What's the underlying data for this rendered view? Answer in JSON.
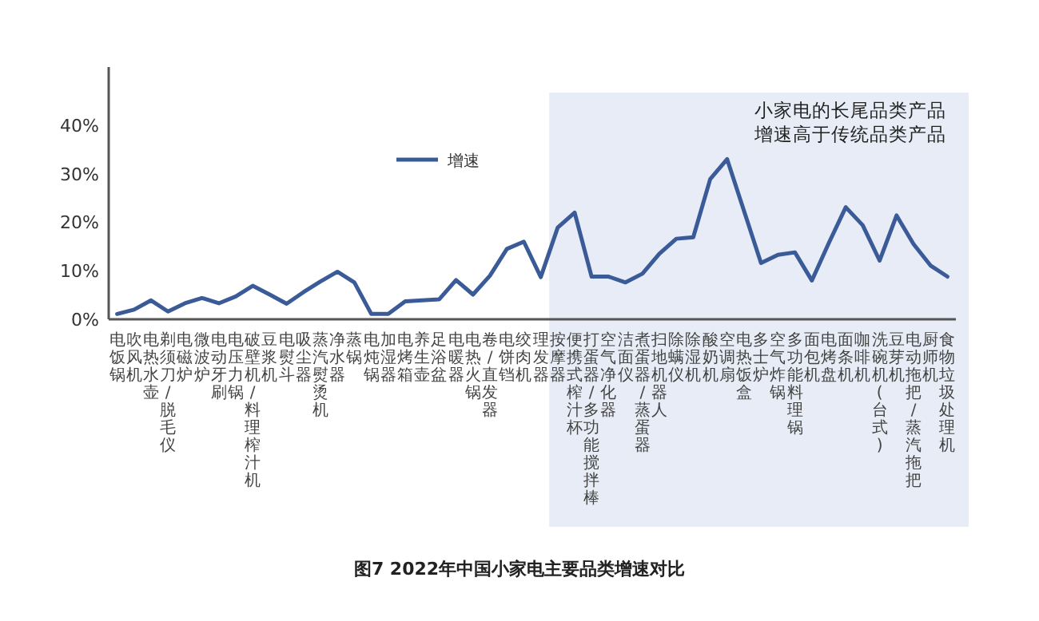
{
  "chart_data": {
    "type": "line",
    "title": "图7 2022年中国小家电主要品类增速对比",
    "categories": [
      "电饭锅",
      "吹风机",
      "电热水壶",
      "剃须刀/脱毛仪",
      "电磁炉",
      "微波炉",
      "电动牙刷",
      "电压力锅",
      "破壁机/料理榨汁机",
      "豆浆机",
      "电熨斗",
      "吸尘器",
      "蒸汽熨烫机",
      "净水器",
      "蒸锅",
      "电炖锅",
      "加湿器",
      "电烤箱",
      "养生壶",
      "足浴盆",
      "电暖器",
      "电热火锅",
      "卷/直发器",
      "电饼铛",
      "绞肉机",
      "理发器",
      "按摩器",
      "便携式榨汁杯",
      "打蛋器/多功能搅拌棒",
      "空气净化器",
      "洁面仪",
      "煮蛋器/蒸蛋器",
      "扫地机器人",
      "除螨仪",
      "除湿机",
      "酸奶机",
      "空调扇",
      "电热饭盒",
      "多士炉",
      "空气炸锅",
      "多功能料理锅",
      "面包机",
      "电烤盘",
      "面条机",
      "咖啡机",
      "洗碗机(台式)",
      "豆芽机",
      "电动拖把/蒸汽拖把",
      "厨师机",
      "食物垃圾处理机"
    ],
    "series": [
      {
        "name": "增速",
        "color": "#3b5b98",
        "values": [
          1.1,
          2.0,
          3.9,
          1.6,
          3.3,
          4.4,
          3.3,
          4.7,
          6.9,
          5.1,
          3.2,
          5.6,
          7.8,
          9.8,
          7.6,
          1.1,
          1.1,
          3.7,
          3.9,
          4.1,
          8.1,
          5.1,
          9.0,
          14.5,
          16.0,
          8.7,
          18.9,
          22.0,
          8.8,
          8.8,
          7.6,
          9.4,
          13.5,
          16.6,
          16.9,
          28.9,
          33.0,
          22.3,
          11.6,
          13.3,
          13.8,
          8.0,
          15.7,
          23.1,
          19.4,
          12.1,
          21.4,
          15.5,
          11.1,
          8.8
        ]
      }
    ],
    "ylim": [
      0,
      52
    ],
    "yticks": [
      {
        "value": 0,
        "label": "0%"
      },
      {
        "value": 10,
        "label": "10%"
      },
      {
        "value": 20,
        "label": "20%"
      },
      {
        "value": 30,
        "label": "30%"
      },
      {
        "value": 40,
        "label": "40%"
      }
    ],
    "bands": [
      {
        "axis": "x",
        "from": "按摩器",
        "to": "食物垃圾处理机",
        "color": "#e7ecf6"
      }
    ],
    "annotations": [
      "小家电的长尾品类产品",
      "增速高于传统品类产品"
    ],
    "legend": "top",
    "grid": false,
    "marker": "none",
    "line_style": "solid"
  }
}
